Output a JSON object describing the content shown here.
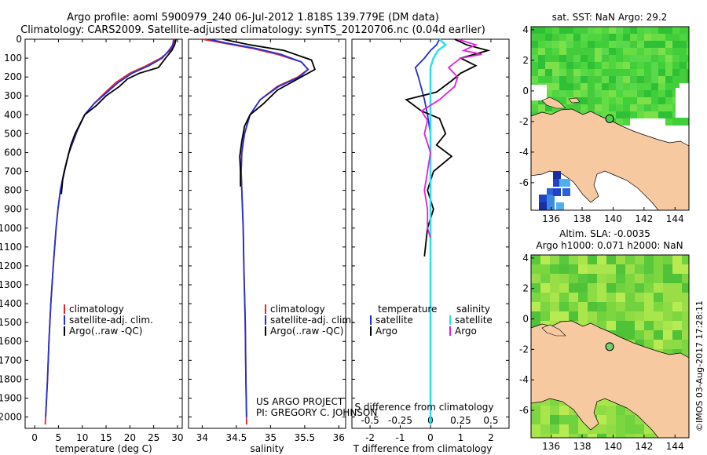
{
  "header": {
    "line1": "Argo profile: aoml 5900979_240 06-Jul-2012 1.818S 139.779E (DM data)",
    "line2": "Climatology: CARS2009. Satellite-adjusted climatology: synTS_20120706.nc (0.04d earlier)"
  },
  "side_stamp": "©IMOS 03-Aug-2017 17:28:11",
  "colors": {
    "climatology": "#e8232a",
    "satellite": "#1f2fd8",
    "argo": "#000000",
    "satellite_s": "#29e0ef",
    "argo_s": "#e020d8",
    "land": "#f7c9a1"
  },
  "chart_data": [
    {
      "type": "line",
      "id": "temperature",
      "xlabel": "temperature (deg C)",
      "xlim": [
        -2,
        31
      ],
      "xticks": [
        0,
        5,
        10,
        15,
        20,
        25,
        30
      ],
      "ylim": [
        2060,
        0
      ],
      "yticks": [
        0,
        100,
        200,
        300,
        400,
        500,
        600,
        700,
        800,
        900,
        1000,
        1100,
        1200,
        1300,
        1400,
        1500,
        1600,
        1700,
        1800,
        1900,
        2000
      ],
      "legend": [
        "climatology",
        "satellite-adj. clim.",
        "Argo(..raw -QC)"
      ],
      "series": [
        {
          "name": "climatology",
          "color": "#e8232a",
          "x": [
            29.5,
            29.3,
            28.5,
            26.5,
            23.5,
            20,
            17,
            14.5,
            12.5,
            10.5,
            9,
            7.2,
            6.2,
            5.4,
            4.9,
            4.5,
            3.9,
            3.4,
            3.0,
            2.7,
            2.5,
            2.3,
            2.2
          ],
          "y": [
            0,
            30,
            60,
            100,
            140,
            180,
            230,
            290,
            340,
            400,
            480,
            600,
            700,
            800,
            900,
            1000,
            1200,
            1400,
            1600,
            1800,
            1900,
            2000,
            2040
          ]
        },
        {
          "name": "satellite-adj. clim.",
          "color": "#1f2fd8",
          "x": [
            29.2,
            29.0,
            28.2,
            26.8,
            24,
            20.5,
            17.5,
            14.8,
            12.5,
            10.5,
            9,
            7.2,
            6.2,
            5.4,
            4.9,
            4.5,
            3.9,
            3.4,
            3.0,
            2.7,
            2.5,
            2.3
          ],
          "y": [
            0,
            30,
            60,
            100,
            140,
            180,
            230,
            290,
            340,
            400,
            480,
            600,
            700,
            800,
            900,
            1000,
            1200,
            1400,
            1600,
            1800,
            1900,
            2000
          ]
        },
        {
          "name": "Argo(..raw -QC)",
          "color": "#000000",
          "x": [
            29.7,
            29.4,
            28.8,
            27.5,
            26,
            22,
            19.5,
            17.8,
            15,
            13,
            10.5,
            9.5,
            8.5,
            7.6,
            6.8,
            5.9,
            5.6
          ],
          "y": [
            0,
            30,
            60,
            100,
            150,
            180,
            210,
            250,
            300,
            350,
            400,
            450,
            500,
            560,
            640,
            740,
            820
          ]
        }
      ]
    },
    {
      "type": "line",
      "id": "salinity",
      "xlabel": "salinity",
      "xlim": [
        33.8,
        36.1
      ],
      "xticks": [
        34,
        34.5,
        35,
        35.5,
        36
      ],
      "ylim": [
        2060,
        0
      ],
      "legend": [
        "climatology",
        "satellite-adj. clim.",
        "Argo(..raw -QC)"
      ],
      "annotation": [
        "US ARGO PROJECT",
        "PI: GREGORY C. JOHNSON"
      ],
      "series": [
        {
          "name": "climatology",
          "color": "#e8232a",
          "x": [
            34.0,
            34.3,
            34.75,
            35.1,
            35.45,
            35.55,
            35.4,
            35.1,
            34.85,
            34.7,
            34.62,
            34.58,
            34.57,
            34.58,
            34.6,
            34.61,
            34.63,
            34.64,
            34.65
          ],
          "y": [
            0,
            20,
            50,
            80,
            120,
            160,
            200,
            250,
            320,
            400,
            500,
            600,
            700,
            800,
            1000,
            1200,
            1500,
            1800,
            2040
          ]
        },
        {
          "name": "satellite-adj. clim.",
          "color": "#1f2fd8",
          "x": [
            34.1,
            34.35,
            34.8,
            35.15,
            35.45,
            35.55,
            35.42,
            35.12,
            34.85,
            34.7,
            34.62,
            34.58,
            34.57,
            34.58,
            34.6,
            34.61,
            34.63,
            34.64,
            34.65
          ],
          "y": [
            0,
            20,
            50,
            80,
            120,
            160,
            200,
            250,
            320,
            400,
            500,
            600,
            700,
            800,
            1000,
            1200,
            1500,
            1800,
            2000
          ]
        },
        {
          "name": "Argo(..raw -QC)",
          "color": "#000000",
          "x": [
            34.3,
            34.7,
            35.2,
            35.6,
            35.65,
            35.5,
            35.35,
            35.1,
            34.9,
            34.7,
            34.62,
            34.58,
            34.55,
            34.56,
            34.56
          ],
          "y": [
            0,
            30,
            60,
            110,
            160,
            190,
            220,
            270,
            340,
            400,
            460,
            540,
            620,
            700,
            780
          ]
        }
      ]
    },
    {
      "type": "line",
      "id": "difference",
      "xlabel": "T difference from climatology",
      "xlabel2": "S difference from climatology",
      "xlim": [
        -2.6,
        2.6
      ],
      "xticks": [
        -2,
        -1,
        0,
        1,
        2
      ],
      "xticks2_labels": [
        "-0.5",
        "-0.25",
        "0",
        "0.25",
        "0.5"
      ],
      "ylim": [
        2060,
        0
      ],
      "legend_headers": [
        "temperature",
        "salinity"
      ],
      "legend": [
        "satellite",
        "Argo",
        "satellite",
        "Argo"
      ],
      "series": [
        {
          "name": "satellite",
          "color": "#1f2fd8",
          "x": [
            0.3,
            0.2,
            0,
            -0.2,
            -0.5,
            -0.4,
            -0.3,
            -0.2,
            -0.1,
            0,
            0,
            0
          ],
          "y": [
            0,
            30,
            60,
            100,
            150,
            200,
            260,
            320,
            400,
            500,
            700,
            2040
          ]
        },
        {
          "name": "Argo",
          "color": "#000000",
          "x": [
            0.8,
            1.2,
            1.9,
            1.0,
            1.5,
            1.0,
            0.7,
            0.2,
            -0.8,
            -0.3,
            0.3,
            0.5,
            0.2,
            0.7,
            0.1,
            -0.1,
            0.1,
            -0.1,
            -0.2
          ],
          "y": [
            0,
            30,
            60,
            100,
            140,
            180,
            220,
            280,
            320,
            380,
            420,
            500,
            560,
            620,
            700,
            800,
            900,
            1000,
            1150
          ]
        },
        {
          "name": "satellite",
          "color": "#29e0ef",
          "x": [
            0.3,
            0.5,
            0.25,
            0.1,
            0,
            0,
            0,
            0,
            0,
            0
          ],
          "y": [
            0,
            30,
            60,
            100,
            150,
            200,
            300,
            500,
            1000,
            2040
          ]
        },
        {
          "name": "Argo",
          "color": "#e020d8",
          "x": [
            0.9,
            1.5,
            1.1,
            1.7,
            1.0,
            0.6,
            0.9,
            0.8,
            0.3,
            -0.3,
            -0.1,
            -0.2,
            0,
            -0.1,
            -0.2,
            -0.1,
            -0.1,
            0
          ],
          "y": [
            0,
            30,
            60,
            80,
            100,
            150,
            200,
            250,
            320,
            380,
            430,
            500,
            600,
            700,
            800,
            900,
            1000,
            1050
          ]
        }
      ]
    },
    {
      "type": "heatmap",
      "id": "sst-map",
      "title": "sat. SST: NaN Argo: 29.2",
      "xlim": [
        134.7,
        144.9
      ],
      "ylim": [
        -7.8,
        4.2
      ],
      "xticks": [
        136,
        138,
        140,
        142,
        144
      ],
      "yticks": [
        -6,
        -4,
        -2,
        0,
        2,
        4
      ],
      "marker": {
        "lon": 139.779,
        "lat": -1.818,
        "color": "#4cd34c"
      }
    },
    {
      "type": "heatmap",
      "id": "sla-map",
      "title": "Altim. SLA: -0.0035",
      "subtitle": "Argo h1000: 0.071 h2000: NaN",
      "xlim": [
        134.7,
        144.9
      ],
      "ylim": [
        -7.8,
        4.2
      ],
      "xticks": [
        136,
        138,
        140,
        142,
        144
      ],
      "yticks": [
        -6,
        -4,
        -2,
        0,
        2,
        4
      ],
      "marker": {
        "lon": 139.779,
        "lat": -1.818,
        "color": "#6fd26f"
      }
    }
  ]
}
